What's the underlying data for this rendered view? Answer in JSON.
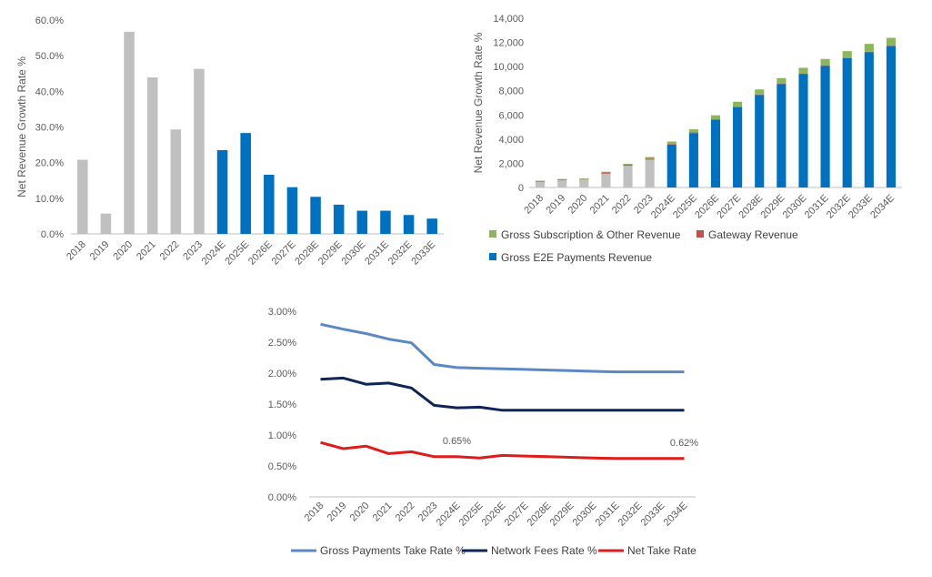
{
  "colors": {
    "historical_bar": "#C0C0C0",
    "forecast_bar": "#0070C0",
    "subscription": "#8CB65A",
    "gateway": "#C0504D",
    "e2e": "#0070C0",
    "gross_take": "#5B87C5",
    "network_fees": "#0F2557",
    "net_take": "#E01B1B",
    "gridline": "#D9D9D9",
    "axis_text": "#595959"
  },
  "chart_data": [
    {
      "type": "bar",
      "ylabel": "Net Revenue Growth Rate %",
      "categories": [
        "2018",
        "2019",
        "2020",
        "2021",
        "2022",
        "2023",
        "2024E",
        "2025E",
        "2026E",
        "2027E",
        "2028E",
        "2029E",
        "2030E",
        "2031E",
        "2032E",
        "2033E"
      ],
      "values": [
        20.8,
        5.7,
        56.7,
        43.9,
        29.3,
        46.3,
        23.5,
        28.3,
        16.6,
        13.1,
        10.4,
        8.2,
        6.5,
        6.5,
        5.3,
        4.3
      ],
      "forecast_from_index": 6,
      "ylim": [
        0,
        60
      ],
      "yticks": [
        "0.0%",
        "10.0%",
        "20.0%",
        "30.0%",
        "40.0%",
        "50.0%",
        "60.0%"
      ],
      "grid": false
    },
    {
      "type": "bar",
      "stacked": true,
      "ylabel": "Net Revenue Growth Rate %",
      "categories": [
        "2018",
        "2019",
        "2020",
        "2021",
        "2022",
        "2023",
        "2024E",
        "2025E",
        "2026E",
        "2027E",
        "2028E",
        "2029E",
        "2030E",
        "2031E",
        "2032E",
        "2033E",
        "2034E"
      ],
      "historical_until_index": 5,
      "series": [
        {
          "name": "Gross E2E Payments Revenue",
          "values": [
            480,
            600,
            660,
            1150,
            1800,
            2300,
            3550,
            4500,
            5600,
            6650,
            7650,
            8550,
            9400,
            10050,
            10700,
            11200,
            11700
          ]
        },
        {
          "name": "Gateway Revenue",
          "values": [
            60,
            60,
            40,
            90,
            80,
            70,
            50,
            50,
            40,
            40,
            40,
            30,
            30,
            30,
            30,
            30,
            30
          ]
        },
        {
          "name": "Gross Subscription & Other Revenue",
          "values": [
            30,
            40,
            50,
            60,
            70,
            150,
            200,
            260,
            330,
            400,
            420,
            470,
            470,
            550,
            550,
            650,
            650
          ]
        }
      ],
      "ylim": [
        0,
        14000
      ],
      "yticks": [
        "0",
        "2,000",
        "4,000",
        "6,000",
        "8,000",
        "10,000",
        "12,000",
        "14,000"
      ],
      "legend": "bottom",
      "legend_entries": [
        "Gross Subscription & Other Revenue",
        "Gateway Revenue",
        "Gross E2E Payments Revenue"
      ],
      "grid": false
    },
    {
      "type": "line",
      "x": [
        "2018",
        "2019",
        "2020",
        "2021",
        "2022",
        "2023",
        "2024E",
        "2025E",
        "2026E",
        "2027E",
        "2028E",
        "2029E",
        "2030E",
        "2031E",
        "2032E",
        "2033E",
        "2034E"
      ],
      "series": [
        {
          "name": "Gross Payments Take Rate %",
          "values": [
            2.79,
            2.71,
            2.64,
            2.55,
            2.49,
            2.14,
            2.09,
            2.08,
            2.07,
            2.06,
            2.05,
            2.04,
            2.03,
            2.02,
            2.02,
            2.02,
            2.02
          ]
        },
        {
          "name": "Network Fees Rate %",
          "values": [
            1.9,
            1.92,
            1.82,
            1.84,
            1.76,
            1.48,
            1.44,
            1.45,
            1.4,
            1.4,
            1.4,
            1.4,
            1.4,
            1.4,
            1.4,
            1.4,
            1.4
          ]
        },
        {
          "name": "Net Take Rate",
          "values": [
            0.88,
            0.78,
            0.82,
            0.7,
            0.73,
            0.65,
            0.65,
            0.63,
            0.67,
            0.66,
            0.65,
            0.64,
            0.63,
            0.62,
            0.62,
            0.62,
            0.62
          ]
        }
      ],
      "annotations": [
        {
          "text": "0.65%",
          "index": 6,
          "series": 2
        },
        {
          "text": "0.62%",
          "index": 16,
          "series": 2
        }
      ],
      "ylim": [
        0,
        3.0
      ],
      "yticks": [
        "0.00%",
        "0.50%",
        "1.00%",
        "1.50%",
        "2.00%",
        "2.50%",
        "3.00%"
      ],
      "legend": "bottom",
      "grid": false
    }
  ]
}
